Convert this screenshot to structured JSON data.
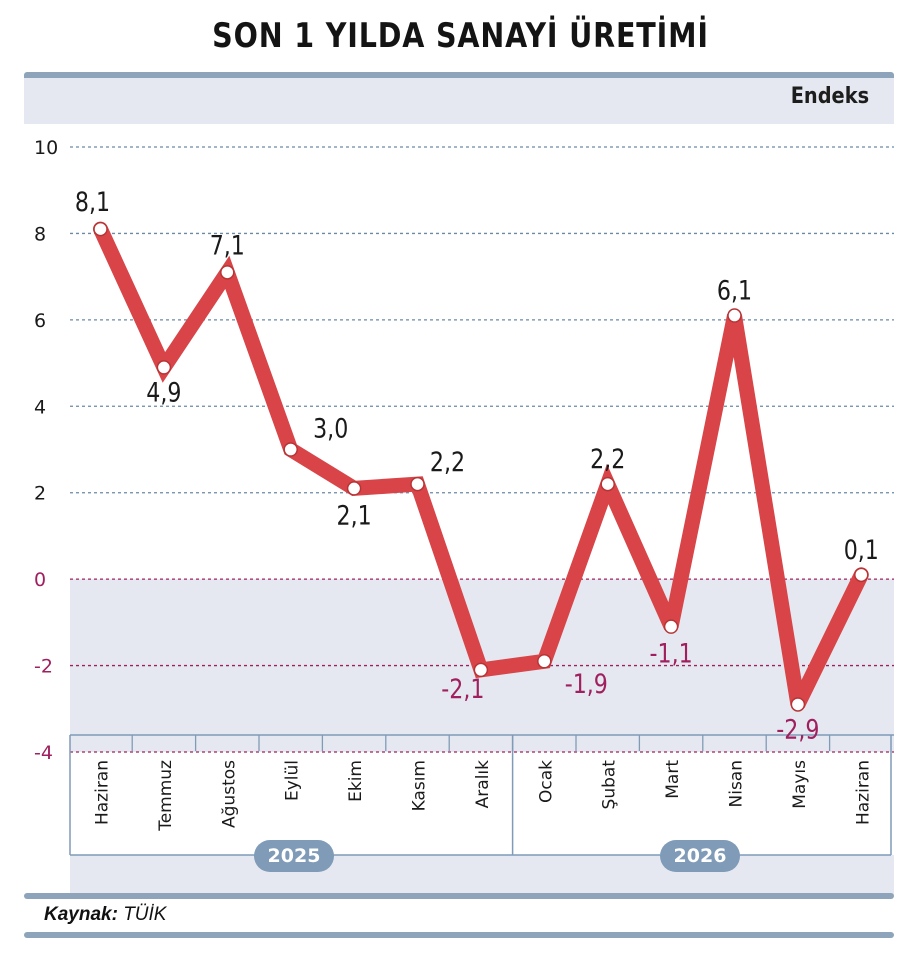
{
  "chart_data": {
    "type": "line",
    "title": "SON 1 YILDA SANAYİ ÜRETİMİ",
    "unit_label": "Endeks",
    "categories": [
      "Haziran",
      "Temmuz",
      "Ağustos",
      "Eylül",
      "Ekim",
      "Kasım",
      "Aralık",
      "Ocak",
      "Şubat",
      "Mart",
      "Nisan",
      "Mayıs",
      "Haziran"
    ],
    "values": [
      8.1,
      4.9,
      7.1,
      3.0,
      2.1,
      2.2,
      -2.1,
      -1.9,
      2.2,
      -1.1,
      6.1,
      -2.9,
      0.1
    ],
    "value_labels": [
      "8,1",
      "4,9",
      "7,1",
      "3,0",
      "2,1",
      "2,2",
      "-2,1",
      "-1,9",
      "2,2",
      "-1,1",
      "6,1",
      "-2,9",
      "0,1"
    ],
    "ylim": [
      -4,
      10
    ],
    "yticks": [
      10,
      8,
      6,
      4,
      2,
      0,
      -2,
      -4
    ],
    "year_groups": [
      {
        "label": "2025",
        "months": 7
      },
      {
        "label": "2026",
        "months": 6
      }
    ],
    "grid": true,
    "colors": {
      "line": "#d84447",
      "positive_label": "#1a1a1a",
      "negative_label": "#a0205f",
      "grid": "#6a8aa6",
      "zero_line": "#a0205f",
      "negative_band": "#e5e8f0"
    }
  },
  "source": {
    "label": "Kaynak:",
    "value": "TÜİK"
  }
}
